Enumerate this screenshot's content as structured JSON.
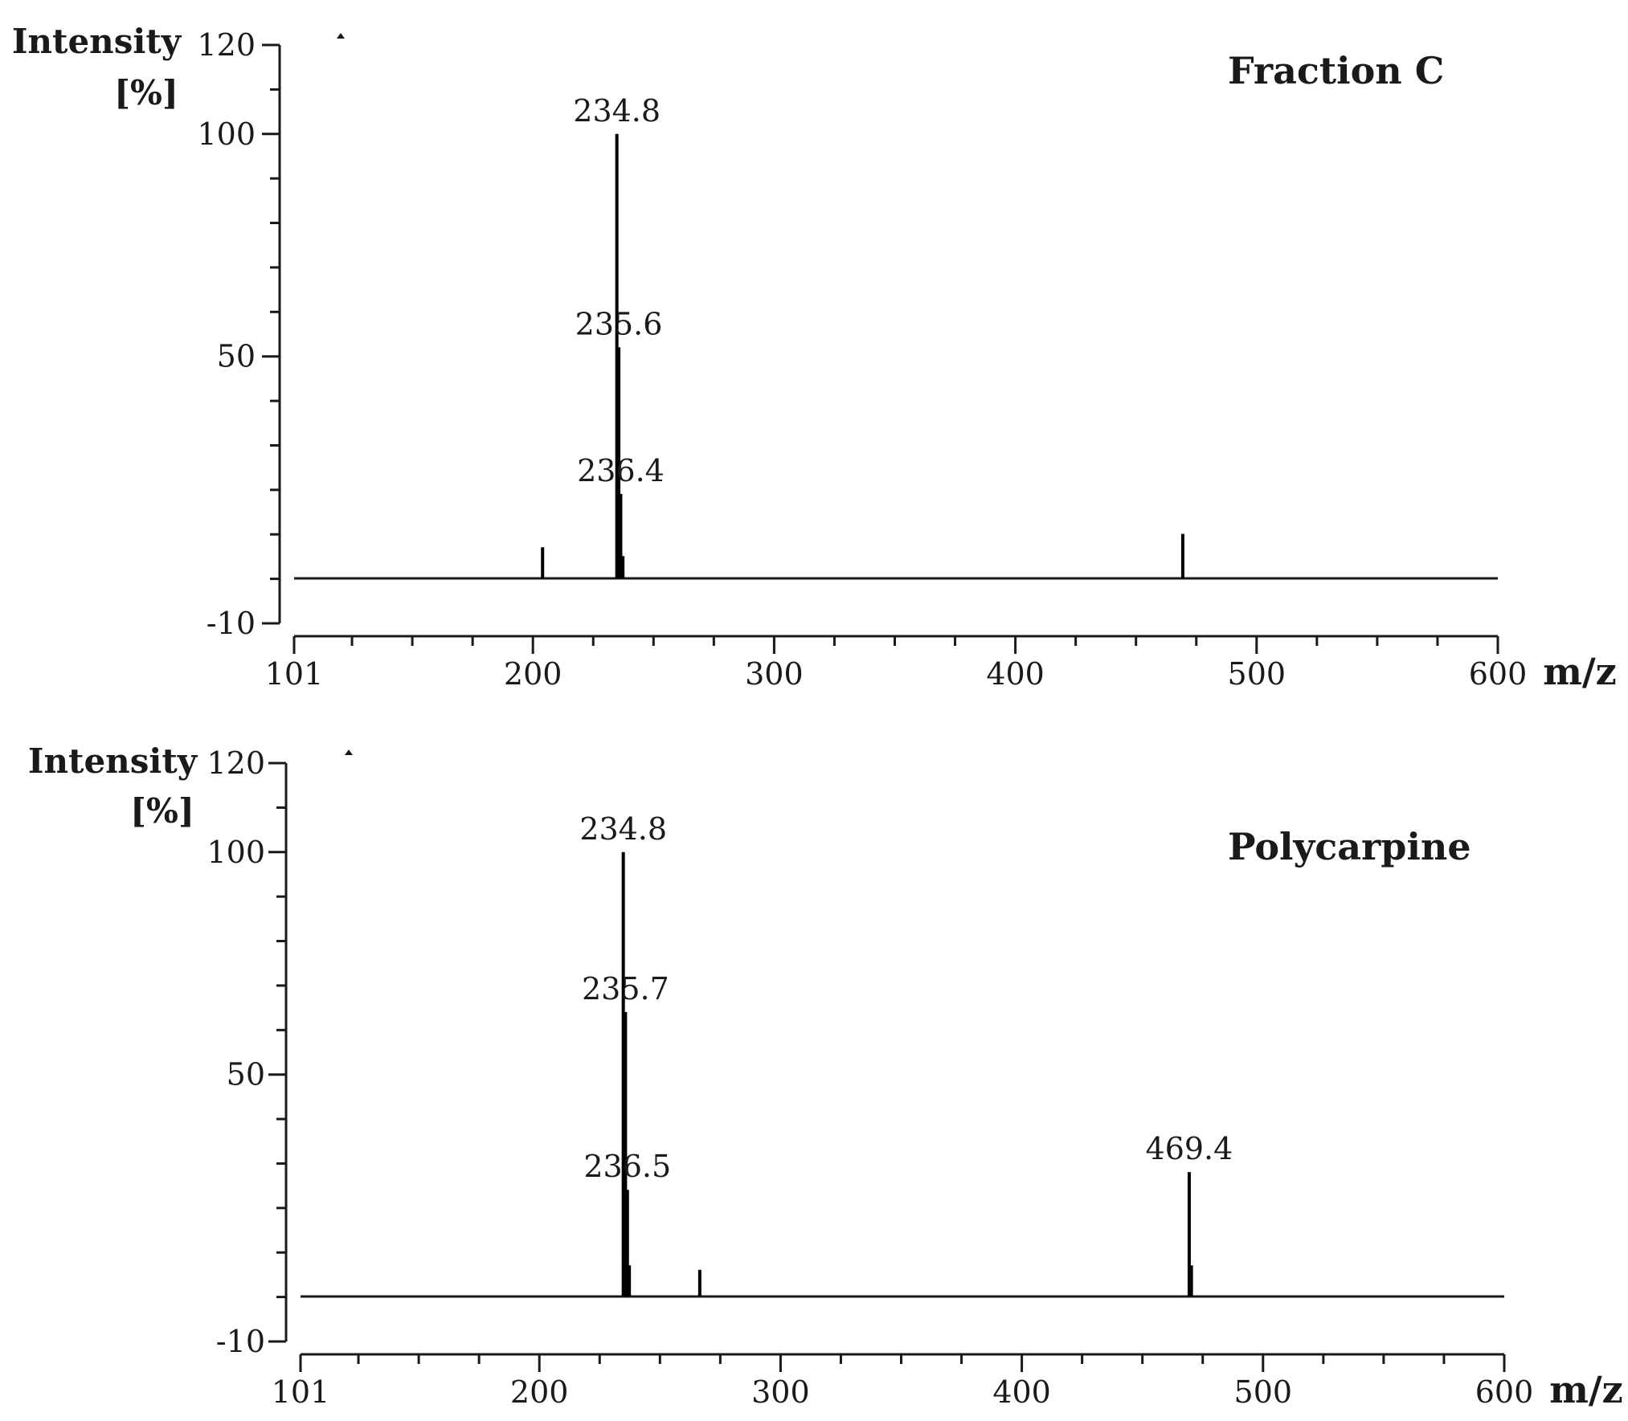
{
  "chart_data": [
    {
      "type": "bar",
      "title": "Fraction C",
      "ylabel_line1": "Intensity",
      "ylabel_line2": "[%]",
      "xlabel": "m/z",
      "ylim": [
        -10,
        120
      ],
      "xlim": [
        101,
        600
      ],
      "y_ticks": [
        "120",
        "100",
        "50",
        "-10"
      ],
      "x_ticks": [
        "101",
        "200",
        "300",
        "400",
        "500",
        "600"
      ],
      "peaks": [
        {
          "x": 204.0,
          "y": 7
        },
        {
          "x": 234.8,
          "y": 100,
          "label": "234.8"
        },
        {
          "x": 235.6,
          "y": 52,
          "label": "235.6"
        },
        {
          "x": 236.4,
          "y": 19,
          "label": "236.4"
        },
        {
          "x": 237.3,
          "y": 5
        },
        {
          "x": 469.4,
          "y": 10
        }
      ]
    },
    {
      "type": "bar",
      "title": "Polycarpine",
      "ylabel_line1": "Intensity",
      "ylabel_line2": "[%]",
      "xlabel": "m/z",
      "ylim": [
        -10,
        120
      ],
      "xlim": [
        101,
        600
      ],
      "y_ticks": [
        "120",
        "100",
        "50",
        "-10"
      ],
      "x_ticks": [
        "101",
        "200",
        "300",
        "400",
        "500",
        "600"
      ],
      "peaks": [
        {
          "x": 234.8,
          "y": 100,
          "label": "234.8"
        },
        {
          "x": 235.7,
          "y": 64,
          "label": "235.7"
        },
        {
          "x": 236.5,
          "y": 24,
          "label": "236.5"
        },
        {
          "x": 237.3,
          "y": 7
        },
        {
          "x": 266.5,
          "y": 6
        },
        {
          "x": 469.4,
          "y": 28,
          "label": "469.4"
        },
        {
          "x": 470.3,
          "y": 7
        }
      ]
    }
  ]
}
